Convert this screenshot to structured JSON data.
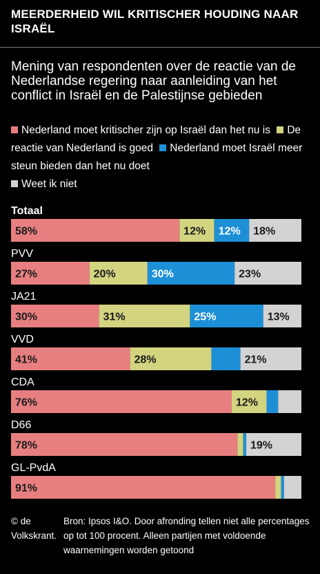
{
  "header": {
    "title": "MEERDERHEID WIL KRITISCHER HOUDING NAAR ISRAËL",
    "subtitle": "Mening van respondenten over de reactie van de Nederlandse regering naar aanleiding van het conflict in Israël en de Palestijnse gebieden"
  },
  "footer": {
    "credit": "© de Volkskrant.",
    "source": "Bron: Ipsos I&O. Door afronding tellen niet alle percentages op tot 100 procent. Alleen partijen met voldoende waarnemingen worden getoond"
  },
  "chart_data": {
    "type": "bar",
    "orientation": "horizontal",
    "stacked": true,
    "unit": "%",
    "legend_placement": "top",
    "grid": false,
    "xlim": [
      0,
      100
    ],
    "series": [
      {
        "name": "Nederland moet kritischer zijn op Israël dan het nu is",
        "color": "#e77f80"
      },
      {
        "name": "De reactie van Nederland is goed",
        "color": "#d2d480"
      },
      {
        "name": "Nederland moet Israël meer steun bieden dan het nu doet",
        "color": "#1d8fd6"
      },
      {
        "name": "Weet ik niet",
        "color": "#d3d3d3"
      }
    ],
    "categories": [
      "Totaal",
      "PVV",
      "JA21",
      "VVD",
      "CDA",
      "D66",
      "GL-PvdA"
    ],
    "values": [
      [
        58,
        12,
        12,
        18
      ],
      [
        27,
        20,
        30,
        23
      ],
      [
        30,
        31,
        25,
        13
      ],
      [
        41,
        28,
        10,
        21
      ],
      [
        76,
        12,
        4,
        8
      ],
      [
        78,
        2,
        1,
        19
      ],
      [
        91,
        2,
        1,
        6
      ]
    ],
    "labels": [
      [
        "58%",
        "12%",
        "12%",
        "18%"
      ],
      [
        "27%",
        "20%",
        "30%",
        "23%"
      ],
      [
        "30%",
        "31%",
        "25%",
        "13%"
      ],
      [
        "41%",
        "28%",
        "",
        "21%"
      ],
      [
        "76%",
        "12%",
        "",
        ""
      ],
      [
        "78%",
        "",
        "",
        "19%"
      ],
      [
        "91%",
        "",
        "",
        ""
      ]
    ]
  }
}
